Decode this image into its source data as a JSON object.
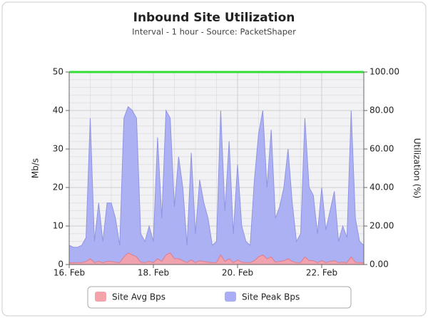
{
  "chart_data": {
    "type": "area",
    "title": "Inbound Site Utilization",
    "subtitle": "Interval - 1 hour - Source: PacketShaper",
    "y_label": "Mb/s",
    "y2_label": "Utilization (%)",
    "x": [
      16.0,
      16.1,
      16.2,
      16.3,
      16.4,
      16.5,
      16.6,
      16.7,
      16.8,
      16.9,
      17.0,
      17.1,
      17.2,
      17.3,
      17.4,
      17.5,
      17.6,
      17.7,
      17.8,
      17.9,
      18.0,
      18.1,
      18.2,
      18.3,
      18.4,
      18.5,
      18.6,
      18.7,
      18.8,
      18.9,
      19.0,
      19.1,
      19.2,
      19.3,
      19.4,
      19.5,
      19.6,
      19.7,
      19.8,
      19.9,
      20.0,
      20.1,
      20.2,
      20.3,
      20.4,
      20.5,
      20.6,
      20.7,
      20.8,
      20.9,
      21.0,
      21.1,
      21.2,
      21.3,
      21.4,
      21.5,
      21.6,
      21.7,
      21.8,
      21.9,
      22.0,
      22.1,
      22.2,
      22.3,
      22.4,
      22.5,
      22.6,
      22.7,
      22.8,
      22.9,
      23.0
    ],
    "series": [
      {
        "name": "Site Peak Bps",
        "color": "#a9aef5",
        "stroke": "#8c90e0",
        "values": [
          5,
          4.5,
          4.5,
          5,
          7,
          38,
          6,
          16,
          6,
          16,
          16,
          12,
          5,
          38,
          41,
          40,
          38,
          8,
          6,
          10,
          6,
          33,
          12,
          40,
          38,
          15,
          28,
          20,
          5,
          29,
          8,
          22,
          16,
          12,
          5,
          6,
          40,
          14,
          32,
          8,
          26,
          10,
          6,
          5,
          22,
          34,
          40,
          20,
          35,
          12,
          15,
          20,
          30,
          16,
          6,
          8,
          38,
          20,
          18,
          8,
          20,
          9,
          14,
          19,
          6,
          10,
          7,
          40,
          12,
          6,
          5
        ]
      },
      {
        "name": "Site Avg Bps",
        "color": "#f4a3ab",
        "stroke": "#e07a86",
        "values": [
          0.5,
          0.5,
          0.5,
          0.5,
          0.8,
          1.5,
          0.5,
          0.8,
          0.5,
          0.8,
          0.8,
          0.6,
          0.5,
          2,
          3,
          2.5,
          2,
          0.6,
          0.5,
          0.8,
          0.5,
          1.5,
          0.8,
          2.5,
          3,
          1.5,
          1.5,
          1,
          0.5,
          1.2,
          0.5,
          1,
          0.8,
          0.6,
          0.5,
          0.5,
          2.5,
          0.8,
          1.5,
          0.5,
          1.2,
          0.6,
          0.5,
          0.5,
          1,
          2,
          2.5,
          1.5,
          2,
          0.6,
          0.8,
          1,
          1.5,
          0.8,
          0.5,
          0.5,
          2,
          1,
          1,
          0.5,
          1,
          0.5,
          0.8,
          1,
          0.5,
          0.6,
          0.5,
          2,
          0.6,
          0.5,
          0.5
        ]
      }
    ],
    "reference_line": {
      "value": 50,
      "color": "#33dd33"
    },
    "xlim": [
      16,
      23
    ],
    "xticks": [
      {
        "value": 16,
        "label": "16. Feb"
      },
      {
        "value": 18,
        "label": "18. Feb"
      },
      {
        "value": 20,
        "label": "20. Feb"
      },
      {
        "value": 22,
        "label": "22. Feb"
      }
    ],
    "ylim": [
      0,
      50
    ],
    "yticks": [
      0,
      10,
      20,
      30,
      40,
      50
    ],
    "y2lim": [
      0,
      100
    ],
    "y2ticks": [
      {
        "value": 0,
        "label": "0.00"
      },
      {
        "value": 20,
        "label": "20.00"
      },
      {
        "value": 40,
        "label": "40.00"
      },
      {
        "value": 60,
        "label": "60.00"
      },
      {
        "value": 80,
        "label": "80.00"
      },
      {
        "value": 100,
        "label": "100.00"
      }
    ],
    "grid": true,
    "minor_grid": true,
    "legend": "bottom"
  }
}
